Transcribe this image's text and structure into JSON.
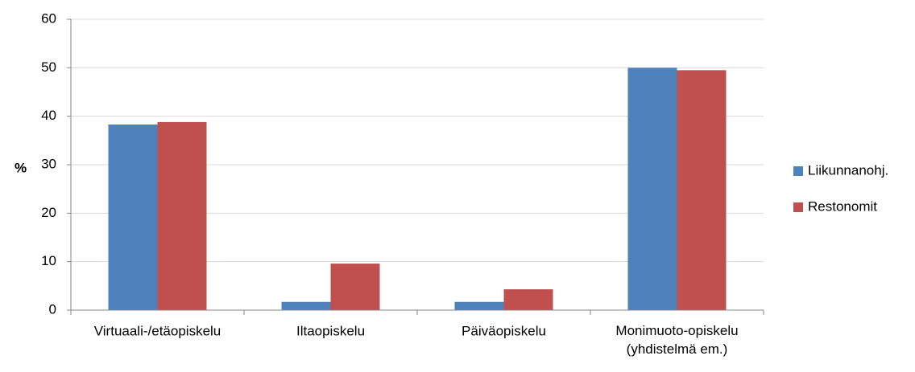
{
  "chart_data": {
    "type": "bar",
    "y_label": "%",
    "categories": [
      "Virtuaali-/etäopiskelu",
      "Iltaopiskelu",
      "Päiväopiskelu",
      "Monimuoto-opiskelu\n(yhdistelmä em.)"
    ],
    "series": [
      {
        "name": "Liikunnanohj.",
        "color": "#4f81bd",
        "values": [
          38.3,
          1.7,
          1.7,
          50.0
        ]
      },
      {
        "name": "Restonomit",
        "color": "#c0504d",
        "values": [
          38.8,
          9.6,
          4.3,
          49.5
        ]
      }
    ],
    "ylim": [
      0,
      60
    ],
    "yticks": [
      0,
      10,
      20,
      30,
      40,
      50,
      60
    ],
    "grid": true,
    "legend": "right"
  }
}
